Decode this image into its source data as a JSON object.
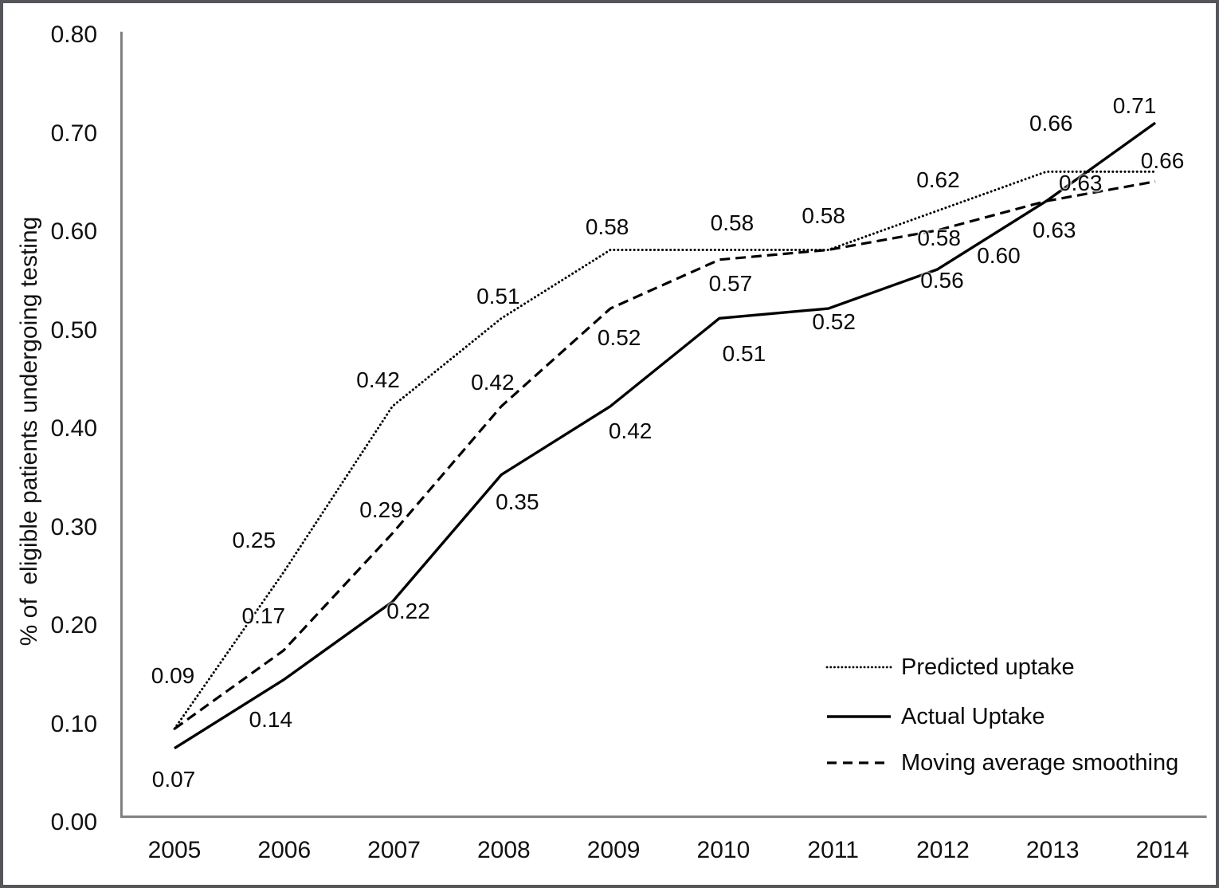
{
  "figure": {
    "frame_color": "#54565a",
    "axis_color": "#7f7f7f",
    "background": "#ffffff",
    "text_color": "#0a0a0a"
  },
  "chart_data": {
    "type": "line",
    "title": "",
    "xlabel": "",
    "ylabel": "% of  eligible patients undergoing testing",
    "categories": [
      "2005",
      "2006",
      "2007",
      "2008",
      "2009",
      "2010",
      "2011",
      "2012",
      "2013",
      "2014"
    ],
    "ylim": [
      0.0,
      0.8
    ],
    "ytick_step": 0.1,
    "yticks": [
      "0.00",
      "0.10",
      "0.20",
      "0.30",
      "0.40",
      "0.50",
      "0.60",
      "0.70",
      "0.80"
    ],
    "grid": false,
    "legend_position": "inside-lower-right",
    "series": [
      {
        "name": "Predicted uptake",
        "line_style": "dotted",
        "color": "#000000",
        "values": [
          0.09,
          0.25,
          0.42,
          0.51,
          0.58,
          0.58,
          0.58,
          0.62,
          0.66,
          0.66
        ],
        "labels": [
          "0.09",
          "0.25",
          "0.42",
          "0.51",
          "0.58",
          "0.58",
          "0.58",
          "0.62",
          "0.66",
          "0.66"
        ],
        "label_offsets": [
          [
            -2,
            -73
          ],
          [
            -38,
            -45
          ],
          [
            -20,
            -36
          ],
          [
            -7,
            -30
          ],
          [
            -8,
            -31
          ],
          [
            11,
            -36
          ],
          [
            -12,
            -45
          ],
          [
            -6,
            -40
          ],
          [
            -2,
            -62
          ],
          [
            0,
            -15
          ]
        ]
      },
      {
        "name": "Actual Uptake",
        "line_style": "solid",
        "color": "#000000",
        "values": [
          0.07,
          0.14,
          0.22,
          0.35,
          0.42,
          0.51,
          0.52,
          0.56,
          0.63,
          0.71
        ],
        "labels": [
          "0.07",
          "0.14",
          "0.22",
          "0.35",
          "0.42",
          "0.51",
          "0.52",
          "0.56",
          "0.63",
          "0.71"
        ],
        "label_offsets": [
          [
            -1,
            32
          ],
          [
            -17,
            44
          ],
          [
            18,
            7
          ],
          [
            17,
            30
          ],
          [
            21,
            28
          ],
          [
            26,
            42
          ],
          [
            1,
            14
          ],
          [
            -1,
            12
          ],
          [
            35,
            -24
          ],
          [
            -35,
            -22
          ]
        ]
      },
      {
        "name": "Moving average smoothing",
        "line_style": "dashed",
        "color": "#000000",
        "values": [
          0.09,
          0.17,
          0.29,
          0.42,
          0.52,
          0.57,
          0.58,
          0.6,
          0.63,
          0.65
        ],
        "labels": [
          null,
          "0.17",
          "0.29",
          "0.42",
          "0.52",
          "0.57",
          "0.58",
          "0.60",
          "0.63",
          null
        ],
        "label_offsets": [
          [
            0,
            0
          ],
          [
            -26,
            -49
          ],
          [
            -16,
            -34
          ],
          [
            -14,
            -33
          ],
          [
            7,
            34
          ],
          [
            9,
            28
          ],
          [
            133,
            -17
          ],
          [
            70,
            30
          ],
          [
            2,
            35
          ],
          [
            0,
            0
          ]
        ]
      }
    ]
  }
}
